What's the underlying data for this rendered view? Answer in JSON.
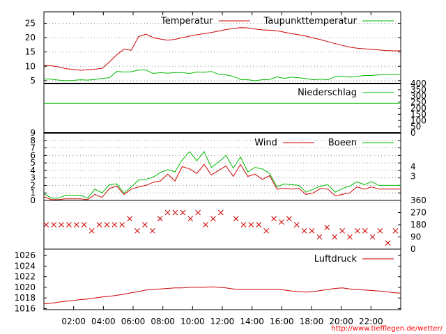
{
  "colors": {
    "red": "#cc0000",
    "green": "#00bb00",
    "grid": "#999999",
    "url": "#ff0000"
  },
  "source_url": "http://www.tiefflegen.de/wetter/",
  "x_ticks": [
    "02:00",
    "04:00",
    "06:00",
    "08:00",
    "10:00",
    "12:00",
    "14:00",
    "16:00",
    "18:00",
    "20:00",
    "22:00"
  ],
  "chart_data": [
    {
      "type": "line",
      "panel": "temperature",
      "ylim": [
        4,
        29
      ],
      "yticks": [
        5,
        10,
        15,
        20,
        25
      ],
      "grid": true,
      "legend_position": "top-right",
      "series": [
        {
          "name": "Temperatur",
          "color": "red",
          "values": [
            10.3,
            10.2,
            9.8,
            9.2,
            8.9,
            8.6,
            8.8,
            9.0,
            9.3,
            11.5,
            14,
            16,
            15.6,
            20.3,
            21.2,
            20,
            19.5,
            19.1,
            19.4,
            20,
            20.5,
            21,
            21.4,
            21.8,
            22.3,
            22.8,
            23.2,
            23.5,
            23.4,
            23.0,
            22.7,
            22.6,
            22.4,
            21.9,
            21.4,
            21.0,
            20.5,
            19.9,
            19.3,
            18.6,
            17.9,
            17.3,
            16.7,
            16.3,
            16.1,
            15.9,
            15.7,
            15.5,
            15.4,
            15.4
          ]
        },
        {
          "name": "Taupunkttemperatur",
          "color": "green",
          "values": [
            5.6,
            5.5,
            5.2,
            5.0,
            5.1,
            5.3,
            5.2,
            5.4,
            5.8,
            6.0,
            8.2,
            8.0,
            8.1,
            8.7,
            8.7,
            7.5,
            7.8,
            7.6,
            7.8,
            7.8,
            7.5,
            8.0,
            7.9,
            8.2,
            7.2,
            7.0,
            6.5,
            5.4,
            5.3,
            5.0,
            5.3,
            5.4,
            6.3,
            5.8,
            6.2,
            6.0,
            5.7,
            5.3,
            5.5,
            5.3,
            6.4,
            6.5,
            6.2,
            6.5,
            6.8,
            6.8,
            7.0,
            7.1,
            7.2,
            7.2
          ]
        }
      ]
    },
    {
      "type": "line",
      "panel": "precipitation",
      "ylim": [
        0,
        400
      ],
      "yticks": [
        0,
        50,
        100,
        150,
        200,
        250,
        300,
        350,
        400
      ],
      "legend_position": "top-right",
      "series": [
        {
          "name": "Niederschlag",
          "color": "green",
          "values": [
            240,
            240
          ]
        }
      ]
    },
    {
      "type": "line",
      "panel": "wind",
      "ylim": [
        0,
        9
      ],
      "yticks": [
        0,
        1,
        2,
        3,
        4,
        5,
        6,
        7,
        8,
        9
      ],
      "right_ticks": [
        "4",
        "3"
      ],
      "grid": true,
      "legend_position": "top-right",
      "series": [
        {
          "name": "Wind",
          "color": "red",
          "values": [
            0.5,
            0.1,
            0.1,
            0.2,
            0.2,
            0.2,
            0.1,
            0.8,
            0.4,
            1.6,
            1.9,
            0.8,
            1.5,
            1.8,
            2.0,
            2.4,
            2.6,
            3.5,
            2.6,
            4.5,
            4.2,
            3.6,
            4.8,
            3.4,
            4.0,
            4.6,
            3.2,
            4.8,
            3.2,
            3.5,
            2.8,
            3.3,
            1.5,
            1.6,
            1.5,
            1.6,
            0.8,
            1.0,
            1.6,
            1.5,
            0.6,
            0.8,
            1.0,
            1.8,
            1.5,
            1.8,
            1.5,
            1.5,
            1.5,
            1.5
          ]
        },
        {
          "name": "Boeen",
          "color": "green",
          "values": [
            0.9,
            0.3,
            0.3,
            0.7,
            0.7,
            0.7,
            0.3,
            1.5,
            1.0,
            2.1,
            2.2,
            1.0,
            1.8,
            2.7,
            2.8,
            3.1,
            3.7,
            4.1,
            3.8,
            5.4,
            6.5,
            5.3,
            6.5,
            4.4,
            5.1,
            6.0,
            4.3,
            5.8,
            3.8,
            4.4,
            4.2,
            3.6,
            1.8,
            2.2,
            2.1,
            2.0,
            1.1,
            1.5,
            1.9,
            2.1,
            1.1,
            1.6,
            1.9,
            2.5,
            2.1,
            2.5,
            2.0,
            2.0,
            2.0,
            2.0
          ]
        }
      ]
    },
    {
      "type": "scatter",
      "panel": "wind_direction",
      "ylim": [
        0,
        360
      ],
      "yticks": [
        0,
        90,
        180,
        270,
        360
      ],
      "marker": "x",
      "color": "red",
      "values": [
        180,
        180,
        180,
        180,
        180,
        180,
        135,
        180,
        180,
        180,
        180,
        225,
        135,
        180,
        135,
        225,
        270,
        270,
        270,
        225,
        270,
        180,
        225,
        270,
        null,
        225,
        180,
        180,
        180,
        135,
        225,
        200,
        225,
        180,
        135,
        135,
        90,
        160,
        90,
        135,
        90,
        135,
        135,
        90,
        135,
        45,
        135
      ]
    },
    {
      "type": "line",
      "panel": "pressure",
      "ylim": [
        1015.8,
        1027.2
      ],
      "yticks": [
        1016,
        1018,
        1020,
        1022,
        1024,
        1026
      ],
      "legend_position": "top-right",
      "series": [
        {
          "name": "Luftdruck",
          "color": "red",
          "values": [
            1016.9,
            1017.0,
            1017.2,
            1017.4,
            1017.5,
            1017.7,
            1017.8,
            1018.0,
            1018.2,
            1018.3,
            1018.5,
            1018.7,
            1019.0,
            1019.2,
            1019.5,
            1019.6,
            1019.7,
            1019.8,
            1019.9,
            1019.9,
            1020.0,
            1020.0,
            1020.0,
            1020.1,
            1020.0,
            1019.9,
            1019.7,
            1019.6,
            1019.6,
            1019.6,
            1019.6,
            1019.6,
            1019.6,
            1019.5,
            1019.3,
            1019.2,
            1019.1,
            1019.2,
            1019.4,
            1019.6,
            1019.8,
            1019.9,
            1019.7,
            1019.6,
            1019.5,
            1019.4,
            1019.3,
            1019.2,
            1019.0,
            1018.9
          ]
        }
      ]
    }
  ]
}
